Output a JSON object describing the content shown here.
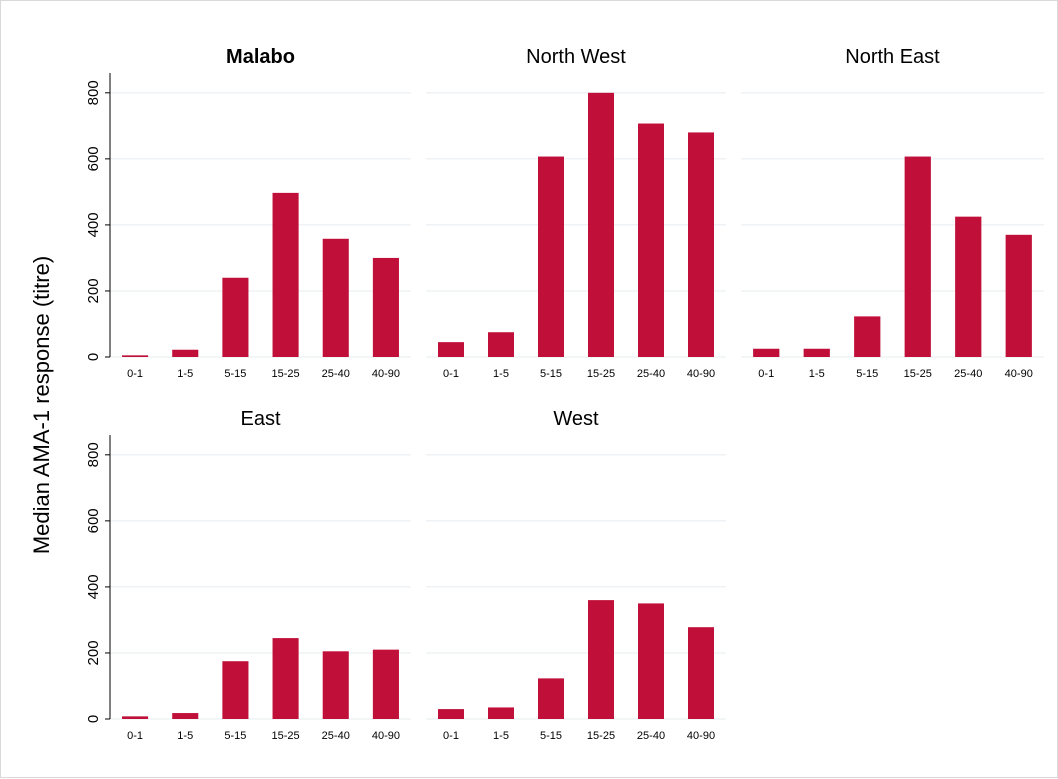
{
  "chart_data": {
    "type": "bar",
    "ylabel": "Median AMA-1 response (titre)",
    "ylim": [
      0,
      860
    ],
    "yticks": [
      0,
      200,
      400,
      600,
      800
    ],
    "categories": [
      "0-1",
      "1-5",
      "5-15",
      "15-25",
      "25-40",
      "40-90"
    ],
    "bar_color": "#c0103a",
    "grid": true,
    "panels": [
      {
        "title": "Malabo",
        "bold": true,
        "values": [
          5,
          22,
          240,
          497,
          358,
          300
        ]
      },
      {
        "title": "North West",
        "bold": false,
        "values": [
          45,
          75,
          607,
          800,
          707,
          680
        ]
      },
      {
        "title": "North East",
        "bold": false,
        "values": [
          25,
          25,
          123,
          607,
          425,
          370
        ]
      },
      {
        "title": "East",
        "bold": false,
        "values": [
          8,
          18,
          175,
          245,
          205,
          210
        ]
      },
      {
        "title": "West",
        "bold": false,
        "values": [
          30,
          35,
          123,
          360,
          350,
          278
        ]
      }
    ]
  }
}
